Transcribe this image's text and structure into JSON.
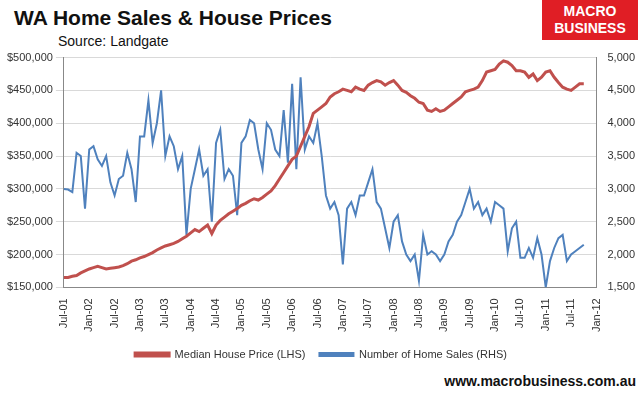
{
  "chart_data": {
    "type": "line",
    "title": "WA Home Sales & House Prices",
    "subtitle": "Source: Landgate",
    "logo": "MACRO BUSINESS",
    "footer": "www.macrobusiness.com.au",
    "categories": [
      "Jul-01",
      null,
      null,
      null,
      null,
      null,
      "Jan-02",
      null,
      null,
      null,
      null,
      null,
      "Jul-02",
      null,
      null,
      null,
      null,
      null,
      "Jan-03",
      null,
      null,
      null,
      null,
      null,
      "Jul-03",
      null,
      null,
      null,
      null,
      null,
      "Jan-04",
      null,
      null,
      null,
      null,
      null,
      "Jul-04",
      null,
      null,
      null,
      null,
      null,
      "Jan-05",
      null,
      null,
      null,
      null,
      null,
      "Jul-05",
      null,
      null,
      null,
      null,
      null,
      "Jan-06",
      null,
      null,
      null,
      null,
      null,
      "Jul-06",
      null,
      null,
      null,
      null,
      null,
      "Jan-07",
      null,
      null,
      null,
      null,
      null,
      "Jul-07",
      null,
      null,
      null,
      null,
      null,
      "Jan-08",
      null,
      null,
      null,
      null,
      null,
      "Jul-08",
      null,
      null,
      null,
      null,
      null,
      "Jan-09",
      null,
      null,
      null,
      null,
      null,
      "Jul-09",
      null,
      null,
      null,
      null,
      null,
      "Jan-10",
      null,
      null,
      null,
      null,
      null,
      "Jul-10",
      null,
      null,
      null,
      null,
      null,
      "Jan-11",
      null,
      null,
      null,
      null,
      null,
      "Jul-11",
      null,
      null,
      null,
      null,
      null,
      "Jan-12"
    ],
    "series": [
      {
        "name": "Median House Price (LHS)",
        "color": "#c0504d",
        "values": [
          165000,
          165000,
          167000,
          168000,
          172000,
          175000,
          178000,
          180000,
          182000,
          180000,
          178000,
          179000,
          180000,
          181000,
          183000,
          186000,
          190000,
          192000,
          195000,
          197000,
          200000,
          203000,
          207000,
          210000,
          213000,
          215000,
          217000,
          220000,
          224000,
          228000,
          233000,
          238000,
          235000,
          240000,
          245000,
          232000,
          245000,
          252000,
          257000,
          262000,
          266000,
          270000,
          275000,
          278000,
          282000,
          285000,
          283000,
          287000,
          292000,
          297000,
          305000,
          315000,
          325000,
          335000,
          345000,
          350000,
          365000,
          380000,
          395000,
          415000,
          420000,
          425000,
          430000,
          440000,
          445000,
          448000,
          452000,
          450000,
          448000,
          455000,
          452000,
          450000,
          458000,
          462000,
          465000,
          463000,
          458000,
          462000,
          465000,
          458000,
          450000,
          447000,
          442000,
          438000,
          432000,
          430000,
          420000,
          418000,
          422000,
          418000,
          420000,
          425000,
          430000,
          435000,
          440000,
          448000,
          450000,
          452000,
          455000,
          465000,
          478000,
          480000,
          482000,
          490000,
          495000,
          493000,
          488000,
          480000,
          480000,
          478000,
          470000,
          475000,
          465000,
          470000,
          478000,
          480000,
          470000,
          462000,
          455000,
          452000,
          450000,
          455000,
          460000,
          460000,
          null,
          null,
          null
        ]
      },
      {
        "name": "Number of Home Sales (RHS)",
        "color": "#4f81bd",
        "axis": "y2",
        "values": [
          3000,
          2990,
          2950,
          3550,
          3500,
          2700,
          3600,
          3650,
          3450,
          3350,
          3500,
          3100,
          2900,
          3150,
          3200,
          3550,
          3300,
          2800,
          3800,
          3800,
          4350,
          3700,
          4000,
          4500,
          3500,
          3800,
          3650,
          3300,
          3500,
          2300,
          3000,
          3300,
          3600,
          3200,
          3300,
          2500,
          3700,
          3900,
          3150,
          3300,
          3200,
          2600,
          3700,
          3800,
          4050,
          4000,
          3600,
          3300,
          4000,
          3900,
          3600,
          3500,
          4200,
          3400,
          4600,
          3300,
          4700,
          3600,
          3800,
          3700,
          4000,
          3500,
          2900,
          2700,
          2800,
          2600,
          1850,
          2700,
          2800,
          2600,
          2900,
          2900,
          3100,
          3300,
          2800,
          2700,
          2400,
          2100,
          2500,
          2600,
          2200,
          2000,
          1900,
          2000,
          1600,
          2300,
          2000,
          2050,
          2000,
          1900,
          2000,
          2200,
          2300,
          2500,
          2600,
          2800,
          3000,
          2700,
          2800,
          2600,
          2700,
          2500,
          2800,
          2750,
          2700,
          2050,
          2400,
          2500,
          1950,
          1950,
          2100,
          1950,
          2250,
          2000,
          1500,
          1900,
          2100,
          2250,
          2300,
          1900,
          2000,
          2050,
          2100,
          2150,
          null,
          null,
          null
        ]
      }
    ],
    "ylim": [
      150000,
      500000
    ],
    "yticks": [
      {
        "value": 150000,
        "label": "$150,000"
      },
      {
        "value": 200000,
        "label": "$200,000"
      },
      {
        "value": 250000,
        "label": "$250,000"
      },
      {
        "value": 300000,
        "label": "$300,000"
      },
      {
        "value": 350000,
        "label": "$350,000"
      },
      {
        "value": 400000,
        "label": "$400,000"
      },
      {
        "value": 450000,
        "label": "$450,000"
      },
      {
        "value": 500000,
        "label": "$500,000"
      }
    ],
    "y2lim": [
      1500,
      5000
    ],
    "y2ticks": [
      {
        "value": 1500,
        "label": "1,500"
      },
      {
        "value": 2000,
        "label": "2,000"
      },
      {
        "value": 2500,
        "label": "2,500"
      },
      {
        "value": 3000,
        "label": "3,000"
      },
      {
        "value": 3500,
        "label": "3,500"
      },
      {
        "value": 4000,
        "label": "4,000"
      },
      {
        "value": 4500,
        "label": "4,500"
      },
      {
        "value": 5000,
        "label": "5,000"
      }
    ],
    "grid": true,
    "legend": "bottom"
  }
}
